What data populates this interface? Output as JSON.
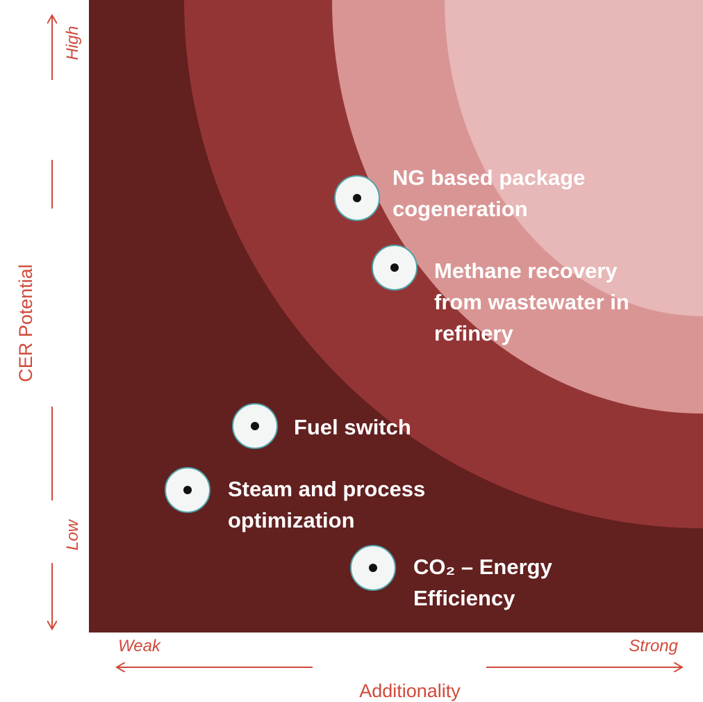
{
  "axes": {
    "y_label": "CER Potential",
    "y_high": "High",
    "y_low": "Low",
    "x_label": "Additionality",
    "x_weak": "Weak",
    "x_strong": "Strong"
  },
  "items": [
    {
      "lines": [
        "NG based package",
        "cogeneration"
      ]
    },
    {
      "lines": [
        "Methane recovery",
        "from wastewater in",
        "refinery"
      ]
    },
    {
      "lines": [
        "Fuel switch"
      ]
    },
    {
      "lines": [
        "Steam and process",
        "optimization"
      ]
    },
    {
      "lines": [
        "CO₂ – Energy",
        "Efficiency"
      ]
    }
  ]
}
